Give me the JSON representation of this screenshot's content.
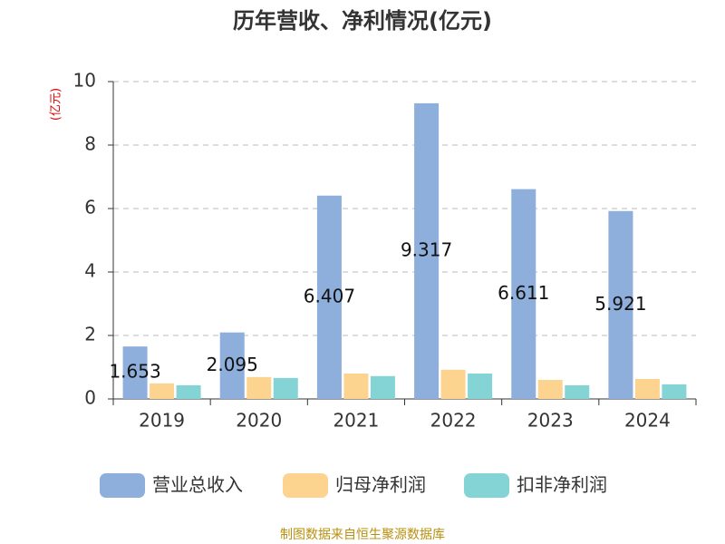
{
  "chart_data": {
    "type": "bar",
    "title": "历年营收、净利情况(亿元)",
    "y_label": "(亿元)",
    "source": "制图数据来自恒生聚源数据库",
    "categories": [
      "2019",
      "2020",
      "2021",
      "2022",
      "2023",
      "2024"
    ],
    "series": [
      {
        "name": "营业总收入",
        "color": "#8eaedb",
        "values": [
          1.653,
          2.095,
          6.407,
          9.317,
          6.611,
          5.921
        ],
        "show_labels": true
      },
      {
        "name": "归母净利润",
        "color": "#fdd390",
        "values": [
          0.49,
          0.69,
          0.8,
          0.92,
          0.6,
          0.63
        ]
      },
      {
        "name": "扣非净利润",
        "color": "#84d4d6",
        "values": [
          0.43,
          0.66,
          0.72,
          0.8,
          0.43,
          0.46
        ]
      }
    ],
    "ylim": [
      0,
      10
    ],
    "yticks": [
      0,
      2,
      4,
      6,
      8,
      10
    ],
    "grid": true
  }
}
